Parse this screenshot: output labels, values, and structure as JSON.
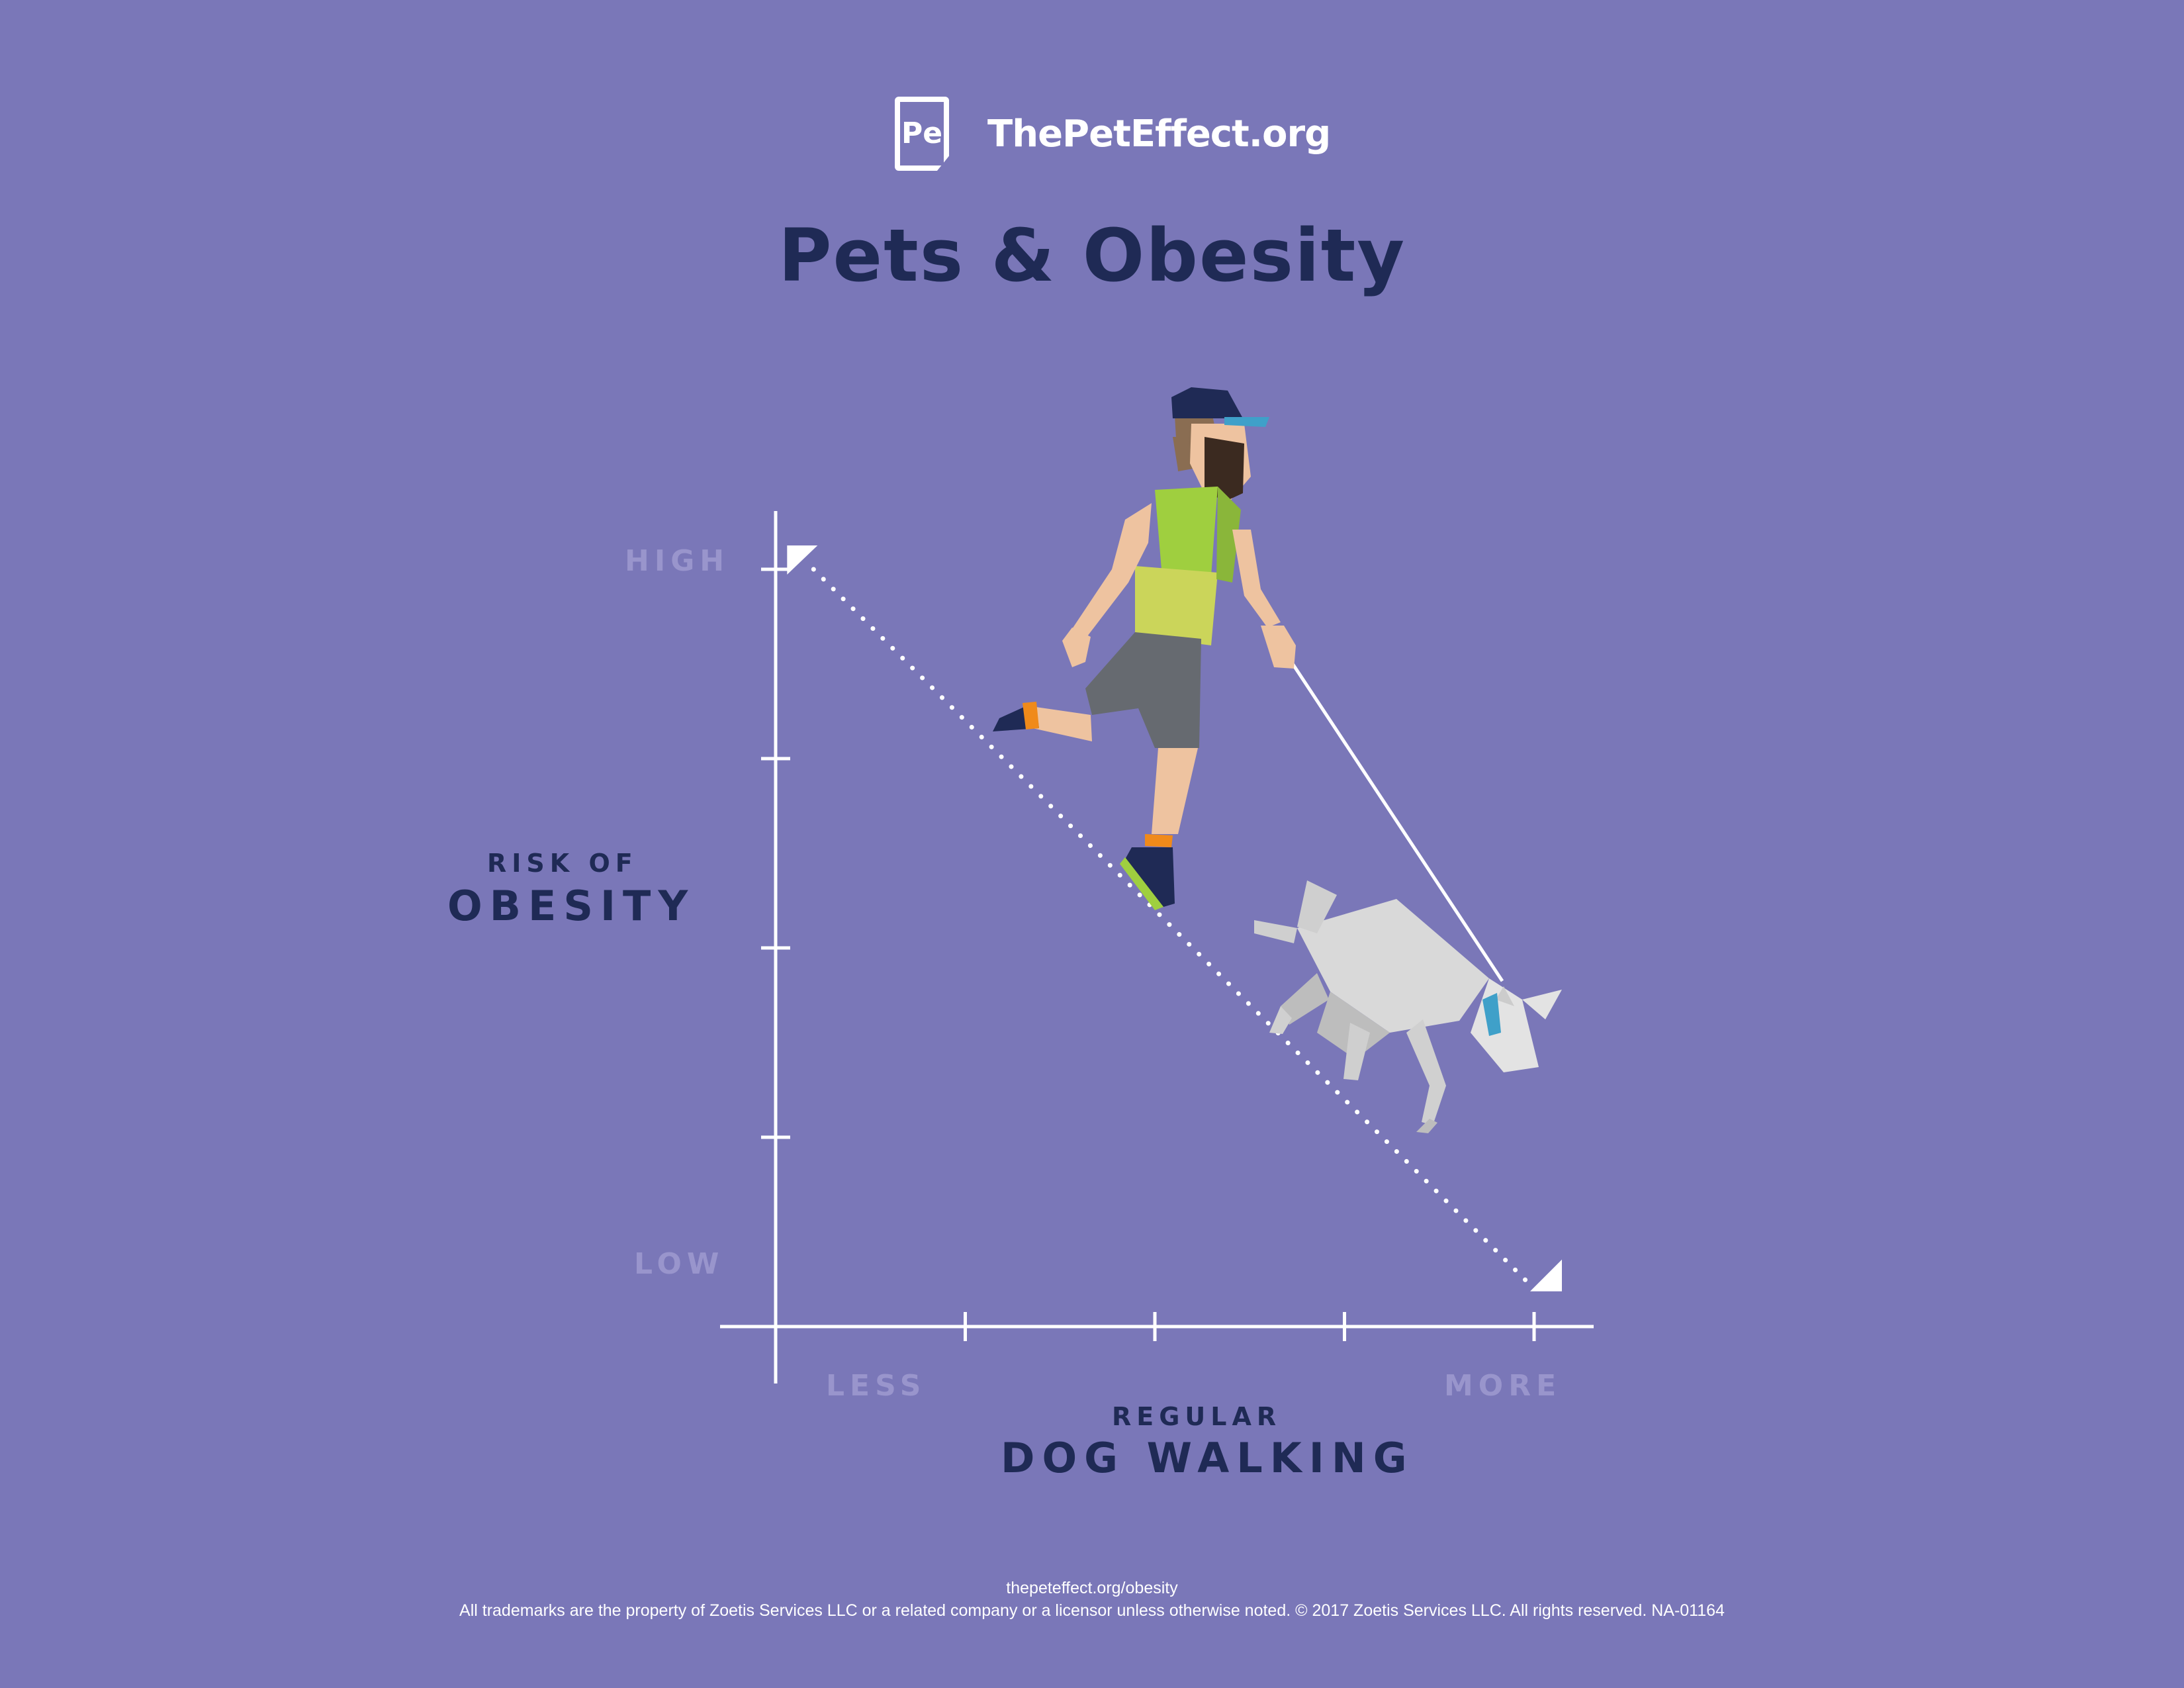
{
  "brand": {
    "logo_text": "Pe",
    "name": "ThePetEffect.org"
  },
  "title": "Pets & Obesity",
  "chart_data": {
    "type": "line",
    "title": "Pets & Obesity",
    "xlabel_small": "REGULAR",
    "xlabel": "DOG WALKING",
    "ylabel_small": "RISK OF",
    "ylabel": "OBESITY",
    "x_tick_labels": {
      "start": "LESS",
      "end": "MORE"
    },
    "y_tick_labels": {
      "top": "HIGH",
      "bottom": "LOW"
    },
    "xlim": [
      0,
      4
    ],
    "ylim": [
      0,
      4
    ],
    "x_ticks": [
      1,
      2,
      3,
      4
    ],
    "y_ticks": [
      1,
      2,
      3,
      4
    ],
    "grid": false,
    "series": [
      {
        "x": [
          0.2,
          4.0
        ],
        "y": [
          4.0,
          0.2
        ],
        "style": "dotted",
        "color": "#ffffff"
      }
    ]
  },
  "illustration": {
    "subject": "man walking dog on leash",
    "icon": "runner-with-dog-icon"
  },
  "footer": {
    "url": "thepeteffect.org/obesity",
    "legal": "All trademarks are the property of Zoetis Services LLC or a related company or a licensor unless otherwise noted. © 2017 Zoetis Services LLC.  All rights reserved. NA-01164"
  },
  "colors": {
    "background": "#7a77b8",
    "navy": "#1f2a55",
    "faded_label": "#9995cc",
    "white": "#ffffff"
  }
}
